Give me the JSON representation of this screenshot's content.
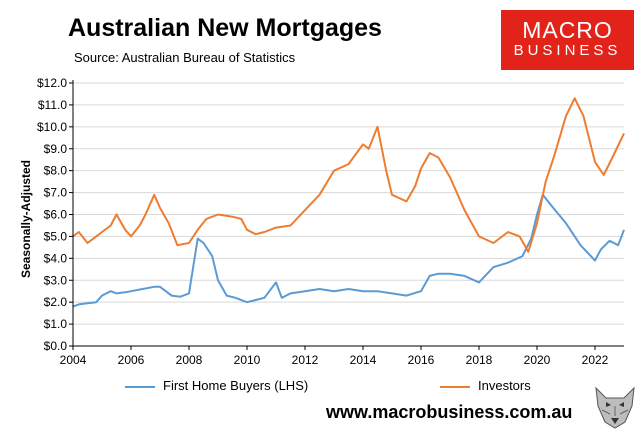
{
  "header": {
    "title": "Australian New Mortgages",
    "subtitle": "Source: Australian Bureau of Statistics"
  },
  "logo": {
    "line1": "MACRO",
    "line2": "BUSINESS"
  },
  "footer": {
    "url": "www.macrobusiness.com.au"
  },
  "colors": {
    "first_home_buyers": "#5b9bd5",
    "investors": "#ed7d31",
    "logo_bg": "#e2231a"
  },
  "chart_data": {
    "type": "line",
    "ylabel": "Seasonally-Adjusted",
    "xlabel": "",
    "ylim": [
      0,
      12
    ],
    "xlim": [
      2004,
      2023
    ],
    "yticks": [
      "$0.0",
      "$1.0",
      "$2.0",
      "$3.0",
      "$4.0",
      "$5.0",
      "$6.0",
      "$7.0",
      "$8.0",
      "$9.0",
      "$10.0",
      "$11.0",
      "$12.0"
    ],
    "xticks": [
      "2004",
      "2006",
      "2008",
      "2010",
      "2012",
      "2014",
      "2016",
      "2018",
      "2020",
      "2022"
    ],
    "grid": true,
    "legend": "bottom",
    "series": [
      {
        "name": "First Home Buyers (LHS)",
        "x": [
          2004.0,
          2004.2,
          2004.5,
          2004.8,
          2005.0,
          2005.3,
          2005.5,
          2005.8,
          2006.0,
          2006.4,
          2006.8,
          2007.0,
          2007.4,
          2007.7,
          2008.0,
          2008.3,
          2008.5,
          2008.8,
          2009.0,
          2009.3,
          2009.6,
          2010.0,
          2010.3,
          2010.6,
          2011.0,
          2011.2,
          2011.5,
          2012.0,
          2012.5,
          2013.0,
          2013.5,
          2014.0,
          2014.5,
          2015.0,
          2015.5,
          2016.0,
          2016.3,
          2016.6,
          2017.0,
          2017.5,
          2018.0,
          2018.5,
          2019.0,
          2019.5,
          2019.8,
          2020.0,
          2020.2,
          2020.5,
          2021.0,
          2021.5,
          2022.0,
          2022.2,
          2022.5,
          2022.8,
          2023.0
        ],
        "values": [
          1.8,
          1.9,
          1.95,
          2.0,
          2.3,
          2.5,
          2.4,
          2.45,
          2.5,
          2.6,
          2.7,
          2.7,
          2.3,
          2.25,
          2.4,
          4.9,
          4.7,
          4.1,
          3.0,
          2.3,
          2.2,
          2.0,
          2.1,
          2.2,
          2.9,
          2.2,
          2.4,
          2.5,
          2.6,
          2.5,
          2.6,
          2.5,
          2.5,
          2.4,
          2.3,
          2.5,
          3.2,
          3.3,
          3.3,
          3.2,
          2.9,
          3.6,
          3.8,
          4.1,
          4.9,
          6.0,
          6.9,
          6.4,
          5.6,
          4.6,
          3.9,
          4.4,
          4.8,
          4.6,
          5.3
        ]
      },
      {
        "name": "Investors",
        "x": [
          2004.0,
          2004.2,
          2004.5,
          2004.8,
          2005.0,
          2005.3,
          2005.5,
          2005.8,
          2006.0,
          2006.3,
          2006.5,
          2006.8,
          2007.0,
          2007.3,
          2007.6,
          2008.0,
          2008.3,
          2008.6,
          2009.0,
          2009.5,
          2009.8,
          2010.0,
          2010.3,
          2010.6,
          2011.0,
          2011.5,
          2012.0,
          2012.5,
          2013.0,
          2013.5,
          2014.0,
          2014.2,
          2014.5,
          2014.8,
          2015.0,
          2015.5,
          2015.8,
          2016.0,
          2016.3,
          2016.6,
          2017.0,
          2017.5,
          2018.0,
          2018.5,
          2019.0,
          2019.4,
          2019.7,
          2020.0,
          2020.3,
          2020.6,
          2021.0,
          2021.3,
          2021.6,
          2022.0,
          2022.3,
          2022.6,
          2023.0
        ],
        "values": [
          5.0,
          5.2,
          4.7,
          5.0,
          5.2,
          5.5,
          6.0,
          5.3,
          5.0,
          5.5,
          6.0,
          6.9,
          6.3,
          5.6,
          4.6,
          4.7,
          5.3,
          5.8,
          6.0,
          5.9,
          5.8,
          5.3,
          5.1,
          5.2,
          5.4,
          5.5,
          6.2,
          6.9,
          8.0,
          8.3,
          9.2,
          9.0,
          10.0,
          8.0,
          6.9,
          6.6,
          7.3,
          8.1,
          8.8,
          8.6,
          7.7,
          6.2,
          5.0,
          4.7,
          5.2,
          5.0,
          4.3,
          5.6,
          7.5,
          8.7,
          10.5,
          11.3,
          10.5,
          8.4,
          7.8,
          8.6,
          9.7
        ]
      }
    ]
  }
}
